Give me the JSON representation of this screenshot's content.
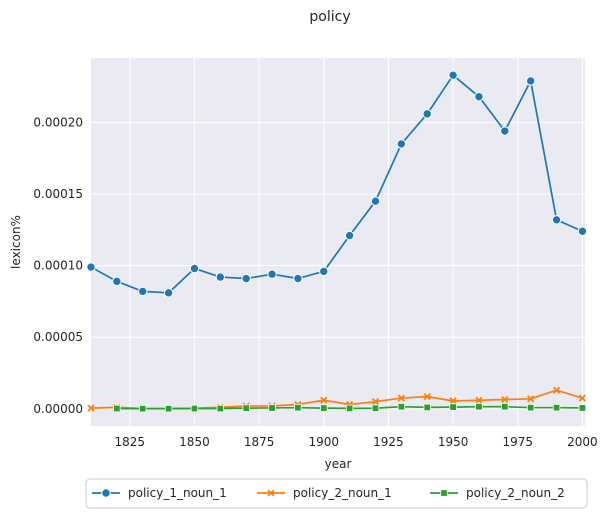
{
  "chart_data": {
    "type": "line",
    "title": "policy",
    "xlabel": "year",
    "ylabel": "lexicon%",
    "xlim": [
      1810,
      2001
    ],
    "ylim": [
      -1.2e-05,
      0.000245
    ],
    "xticks": [
      1825,
      1850,
      1875,
      1900,
      1925,
      1950,
      1975,
      2000
    ],
    "yticks": [
      0.0,
      5e-05,
      0.0001,
      0.00015,
      0.0002
    ],
    "ytick_labels": [
      "0.00000",
      "0.00005",
      "0.00010",
      "0.00015",
      "0.00020"
    ],
    "grid": true,
    "legend_position": "bottom-center",
    "x": [
      1810,
      1820,
      1830,
      1840,
      1850,
      1860,
      1870,
      1880,
      1890,
      1900,
      1910,
      1920,
      1930,
      1940,
      1950,
      1960,
      1970,
      1980,
      1990,
      2000
    ],
    "series": [
      {
        "name": "policy_1_noun_1",
        "color": "#1f77b4",
        "marker": "circle",
        "values": [
          9.9e-05,
          8.9e-05,
          8.2e-05,
          8.1e-05,
          9.8e-05,
          9.2e-05,
          9.1e-05,
          9.4e-05,
          9.1e-05,
          9.6e-05,
          0.000121,
          0.000145,
          0.000185,
          0.000206,
          0.000233,
          0.000218,
          0.000194,
          0.000229,
          0.000132,
          0.000124
        ]
      },
      {
        "name": "policy_2_noun_1",
        "color": "#ff7f0e",
        "marker": "x",
        "values": [
          5e-07,
          1e-06,
          2e-07,
          2e-07,
          4e-07,
          1e-06,
          2e-06,
          2e-06,
          3e-06,
          6e-06,
          3e-06,
          5e-06,
          7.5e-06,
          8.5e-06,
          5.5e-06,
          6e-06,
          6.5e-06,
          7e-06,
          1.3e-05,
          7.5e-06
        ]
      },
      {
        "name": "policy_2_noun_2",
        "color": "#2ca02c",
        "marker": "square",
        "values": [
          null,
          2e-07,
          1e-07,
          1e-07,
          2e-07,
          2e-07,
          5e-07,
          6e-07,
          8e-07,
          5e-07,
          3e-07,
          4e-07,
          1.5e-06,
          1e-06,
          1.2e-06,
          1.5e-06,
          1.5e-06,
          8e-07,
          8e-07,
          6e-07
        ]
      }
    ]
  }
}
